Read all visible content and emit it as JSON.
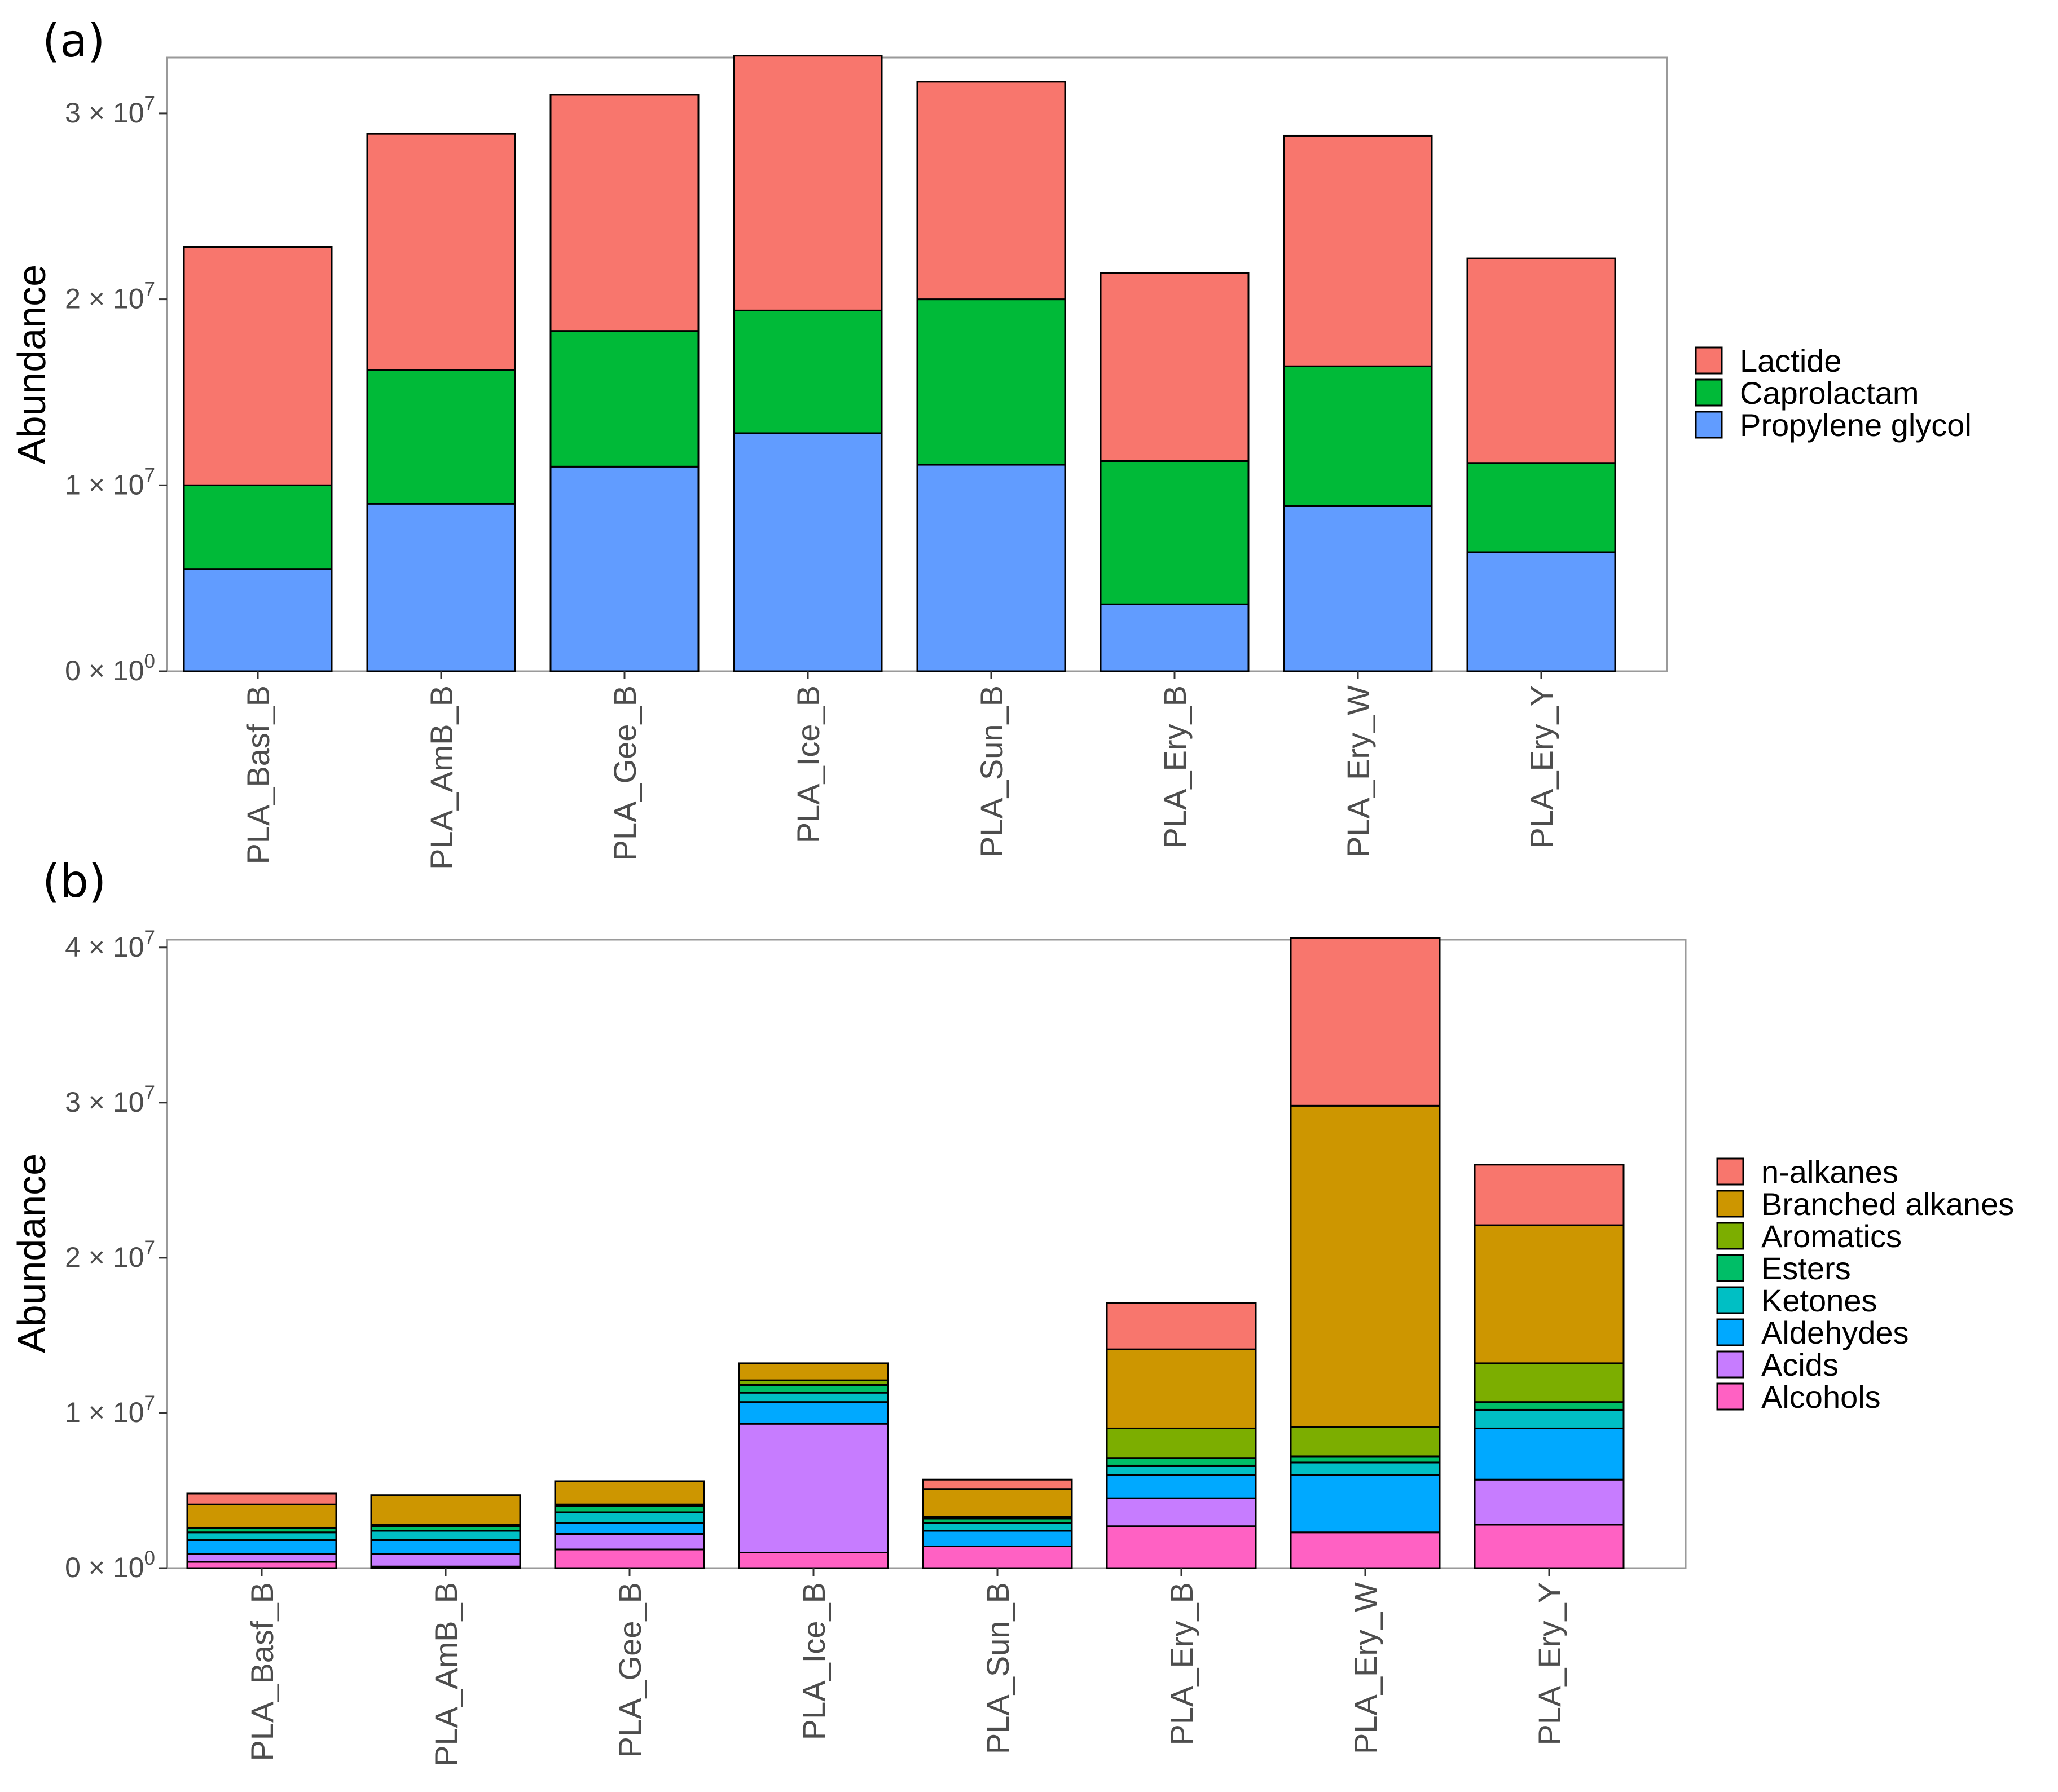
{
  "chart_data": [
    {
      "panel_label": "(a)",
      "type": "bar",
      "stacked": true,
      "ylabel": "Abundance",
      "xlabel": "",
      "ylim": [
        0,
        33000000
      ],
      "yticks": [
        {
          "value": 0,
          "mantissa": "0",
          "exponent": "0"
        },
        {
          "value": 10000000,
          "mantissa": "1",
          "exponent": "7"
        },
        {
          "value": 20000000,
          "mantissa": "2",
          "exponent": "7"
        },
        {
          "value": 30000000,
          "mantissa": "3",
          "exponent": "7"
        }
      ],
      "categories": [
        "PLA_Basf_B",
        "PLA_AmB_B",
        "PLA_Gee_B",
        "PLA_Ice_B",
        "PLA_Sun_B",
        "PLA_Ery_B",
        "PLA_Ery_W",
        "PLA_Ery_Y"
      ],
      "series": [
        {
          "name": "Propylene glycol",
          "color": "#619CFF",
          "values": [
            5500000,
            9000000,
            11000000,
            12800000,
            11100000,
            3600000,
            8900000,
            6400000
          ]
        },
        {
          "name": "Caprolactam",
          "color": "#00BA38",
          "values": [
            4500000,
            7200000,
            7300000,
            6600000,
            8900000,
            7700000,
            7500000,
            4800000
          ]
        },
        {
          "name": "Lactide",
          "color": "#F8766D",
          "values": [
            12800000,
            12700000,
            12700000,
            13700000,
            11700000,
            10100000,
            12400000,
            11000000
          ]
        }
      ],
      "legend": {
        "position": "right",
        "entries": [
          "Lactide",
          "Caprolactam",
          "Propylene glycol"
        ]
      }
    },
    {
      "panel_label": "(b)",
      "type": "bar",
      "stacked": true,
      "ylabel": "Abundance",
      "xlabel": "",
      "ylim": [
        0,
        40500000
      ],
      "yticks": [
        {
          "value": 0,
          "mantissa": "0",
          "exponent": "0"
        },
        {
          "value": 10000000,
          "mantissa": "1",
          "exponent": "7"
        },
        {
          "value": 20000000,
          "mantissa": "2",
          "exponent": "7"
        },
        {
          "value": 30000000,
          "mantissa": "3",
          "exponent": "7"
        },
        {
          "value": 40000000,
          "mantissa": "4",
          "exponent": "7"
        }
      ],
      "categories": [
        "PLA_Basf_B",
        "PLA_AmB_B",
        "PLA_Gee_B",
        "PLA_Ice_B",
        "PLA_Sun_B",
        "PLA_Ery_B",
        "PLA_Ery_W",
        "PLA_Ery_Y"
      ],
      "series": [
        {
          "name": "Alcohols",
          "color": "#FF61C3",
          "values": [
            400000,
            100000,
            1200000,
            1000000,
            1400000,
            2700000,
            2300000,
            2800000
          ]
        },
        {
          "name": "Acids",
          "color": "#C77CFF",
          "values": [
            500000,
            800000,
            1000000,
            8300000,
            0,
            1800000,
            0,
            2900000
          ]
        },
        {
          "name": "Aldehydes",
          "color": "#00A9FF",
          "values": [
            900000,
            900000,
            700000,
            1400000,
            1000000,
            1500000,
            3700000,
            3300000
          ]
        },
        {
          "name": "Ketones",
          "color": "#00BFC4",
          "values": [
            500000,
            600000,
            700000,
            600000,
            500000,
            600000,
            800000,
            1200000
          ]
        },
        {
          "name": "Esters",
          "color": "#00BE67",
          "values": [
            300000,
            300000,
            400000,
            500000,
            300000,
            500000,
            400000,
            500000
          ]
        },
        {
          "name": "Aromatics",
          "color": "#7CAE00",
          "values": [
            0,
            100000,
            100000,
            300000,
            100000,
            1900000,
            1900000,
            2500000
          ]
        },
        {
          "name": "Branched alkanes",
          "color": "#CD9600",
          "values": [
            1500000,
            1900000,
            1500000,
            1100000,
            1800000,
            5100000,
            20700000,
            8900000
          ]
        },
        {
          "name": "n-alkanes",
          "color": "#F8766D",
          "values": [
            700000,
            0,
            0,
            0,
            600000,
            3000000,
            10800000,
            3900000
          ]
        }
      ],
      "legend": {
        "position": "right",
        "entries": [
          "n-alkanes",
          "Branched alkanes",
          "Aromatics",
          "Esters",
          "Ketones",
          "Aldehydes",
          "Acids",
          "Alcohols"
        ]
      }
    }
  ]
}
